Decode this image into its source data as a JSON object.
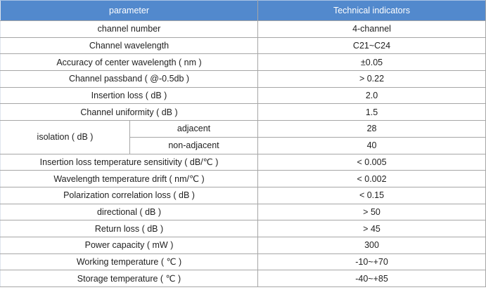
{
  "colors": {
    "header_bg": "#5289cd",
    "header_text": "#ffffff",
    "border": "#a6a6a6",
    "body_text": "#1f1f1f"
  },
  "table": {
    "header": {
      "param": "parameter",
      "value": "Technical indicators"
    },
    "rows_a": [
      {
        "param": "channel number",
        "value": "4-channel"
      },
      {
        "param": "Channel wavelength",
        "value": "C21~C24"
      },
      {
        "param": "Accuracy of center wavelength ( nm )",
        "value": "±0.05"
      },
      {
        "param": "Channel passband ( @-0.5db )",
        "value": "> 0.22"
      },
      {
        "param": "Insertion loss ( dB )",
        "value": "2.0"
      },
      {
        "param": "Channel uniformity ( dB )",
        "value": "1.5"
      }
    ],
    "isolation": {
      "param": "isolation ( dB )",
      "sub": [
        {
          "param": "adjacent",
          "value": "28"
        },
        {
          "param": "non-adjacent",
          "value": "40"
        }
      ]
    },
    "rows_b": [
      {
        "param": "Insertion loss temperature sensitivity ( dB/℃ )",
        "value": "< 0.005"
      },
      {
        "param": "Wavelength temperature drift ( nm/℃ )",
        "value": "< 0.002"
      },
      {
        "param": "Polarization correlation loss ( dB )",
        "value": "< 0.15"
      },
      {
        "param": "directional ( dB )",
        "value": "> 50"
      },
      {
        "param": "Return loss ( dB )",
        "value": "> 45"
      },
      {
        "param": "Power capacity ( mW )",
        "value": "300"
      },
      {
        "param": "Working temperature ( ℃ )",
        "value": "-10~+70"
      },
      {
        "param": "Storage temperature ( ℃ )",
        "value": "-40~+85"
      }
    ]
  }
}
